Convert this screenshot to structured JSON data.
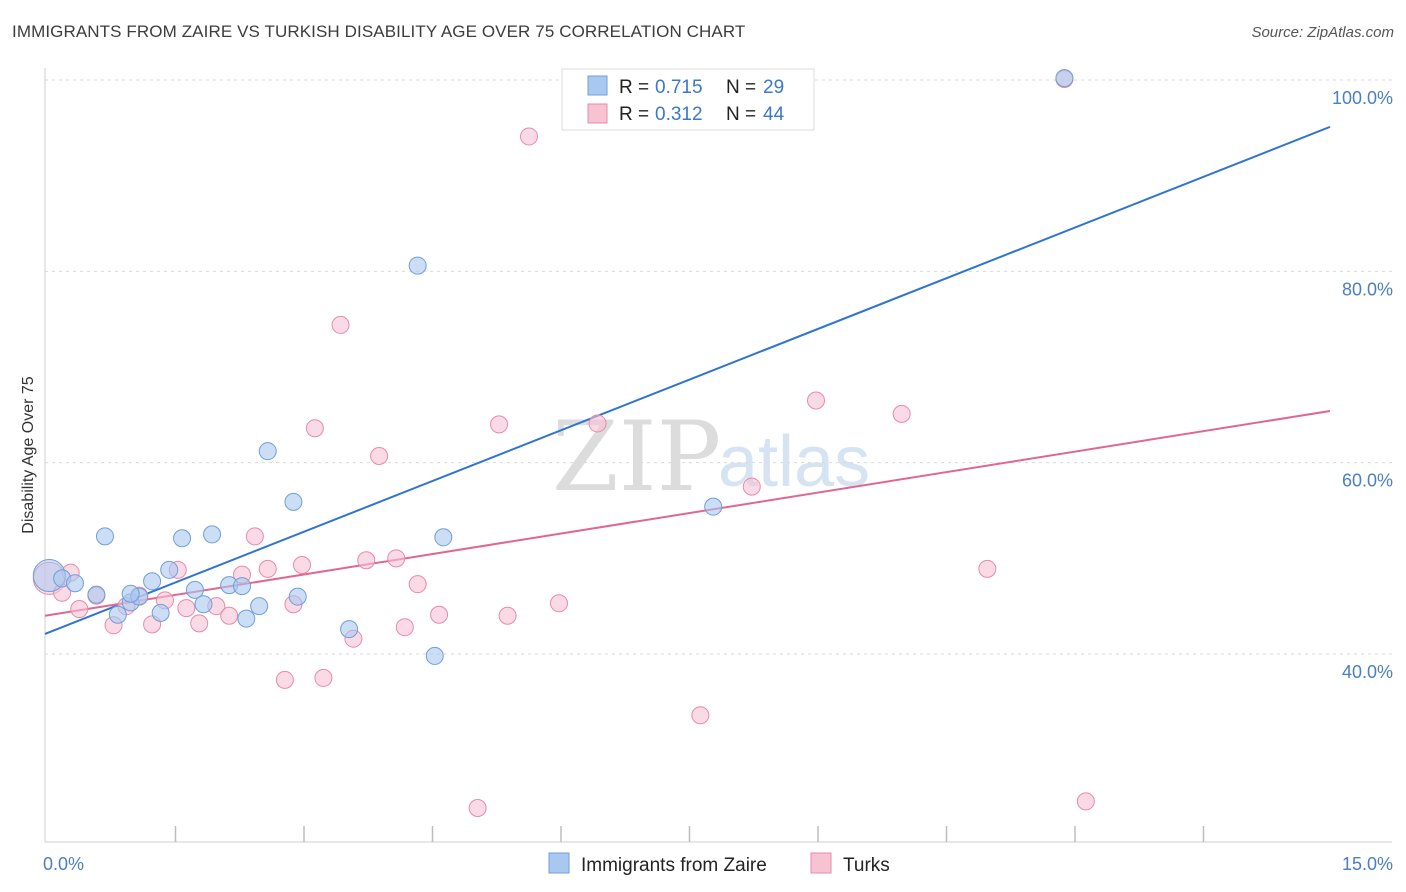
{
  "title": "IMMIGRANTS FROM ZAIRE VS TURKISH DISABILITY AGE OVER 75 CORRELATION CHART",
  "source": "Source: ZipAtlas.com",
  "watermark": {
    "zip": "ZIP",
    "atlas": "atlas"
  },
  "colors": {
    "blue_fill": "#a9c8f0",
    "blue_stroke": "#6f9fd8",
    "blue_line": "#2f74d0",
    "pink_fill": "#f7c3d3",
    "pink_stroke": "#e98aa9",
    "pink_line": "#e0678f",
    "grid": "#d9d9d9",
    "axis_label": "#4a7fc1"
  },
  "legend": {
    "rows": [
      {
        "r_label": "R =",
        "r_value": "0.715",
        "n_label": "N =",
        "n_value": "29"
      },
      {
        "r_label": "R =",
        "r_value": "0.312",
        "n_label": "N =",
        "n_value": "44"
      }
    ]
  },
  "bottom_legend": [
    "Immigrants from Zaire",
    "Turks"
  ],
  "chart_data": {
    "type": "scatter",
    "title": "IMMIGRANTS FROM ZAIRE VS TURKISH DISABILITY AGE OVER 75 CORRELATION CHART",
    "xlabel": "",
    "ylabel": "Disability Age Over 75",
    "xlim": [
      0,
      15
    ],
    "ylim": [
      22,
      102
    ],
    "x_tick_labels": [
      {
        "value": 0,
        "label": "0.0%"
      },
      {
        "value": 15,
        "label": "15.0%"
      }
    ],
    "y_tick_labels": [
      {
        "value": 100,
        "label": "100.0%"
      },
      {
        "value": 80,
        "label": "80.0%"
      },
      {
        "value": 60,
        "label": "60.0%"
      },
      {
        "value": 40,
        "label": "40.0%"
      }
    ],
    "y_gridlines": [
      100,
      80,
      60,
      40
    ],
    "x_minor_ticks": [
      1.5,
      3.0,
      4.5,
      6.0,
      7.5,
      9.0,
      10.5,
      12.0,
      13.5
    ],
    "series": [
      {
        "name": "Immigrants from Zaire",
        "color": "blue",
        "trend": {
          "x": [
            0,
            15
          ],
          "y": [
            42.1,
            95.1
          ]
        },
        "points": [
          {
            "x": 0.05,
            "y": 48.2,
            "big": true
          },
          {
            "x": 0.2,
            "y": 47.9
          },
          {
            "x": 0.35,
            "y": 47.4
          },
          {
            "x": 0.6,
            "y": 46.2
          },
          {
            "x": 0.7,
            "y": 52.3
          },
          {
            "x": 0.85,
            "y": 44.1
          },
          {
            "x": 1.0,
            "y": 45.4
          },
          {
            "x": 1.1,
            "y": 46.0
          },
          {
            "x": 1.25,
            "y": 47.6
          },
          {
            "x": 1.35,
            "y": 44.3
          },
          {
            "x": 1.45,
            "y": 48.8
          },
          {
            "x": 1.6,
            "y": 52.1
          },
          {
            "x": 1.75,
            "y": 46.7
          },
          {
            "x": 1.85,
            "y": 45.2
          },
          {
            "x": 1.95,
            "y": 52.5
          },
          {
            "x": 2.15,
            "y": 47.2
          },
          {
            "x": 2.3,
            "y": 47.1
          },
          {
            "x": 2.35,
            "y": 43.7
          },
          {
            "x": 2.5,
            "y": 45.0
          },
          {
            "x": 2.6,
            "y": 61.2
          },
          {
            "x": 2.9,
            "y": 55.9
          },
          {
            "x": 2.95,
            "y": 46.0
          },
          {
            "x": 3.55,
            "y": 42.6
          },
          {
            "x": 4.35,
            "y": 80.6
          },
          {
            "x": 4.55,
            "y": 39.8
          },
          {
            "x": 4.65,
            "y": 52.2
          },
          {
            "x": 7.8,
            "y": 55.4
          },
          {
            "x": 11.9,
            "y": 100.2
          },
          {
            "x": 1.0,
            "y": 46.3
          }
        ]
      },
      {
        "name": "Turks",
        "color": "pink",
        "trend": {
          "x": [
            0,
            15
          ],
          "y": [
            44.0,
            65.4
          ]
        },
        "points": [
          {
            "x": 0.05,
            "y": 47.9,
            "big": true
          },
          {
            "x": 0.2,
            "y": 46.4
          },
          {
            "x": 0.4,
            "y": 44.7
          },
          {
            "x": 0.6,
            "y": 46.1
          },
          {
            "x": 0.8,
            "y": 43.0
          },
          {
            "x": 0.95,
            "y": 45.0
          },
          {
            "x": 1.1,
            "y": 46.1
          },
          {
            "x": 1.25,
            "y": 43.1
          },
          {
            "x": 1.4,
            "y": 45.6
          },
          {
            "x": 1.55,
            "y": 48.8
          },
          {
            "x": 1.65,
            "y": 44.8
          },
          {
            "x": 1.8,
            "y": 43.2
          },
          {
            "x": 2.0,
            "y": 45.0
          },
          {
            "x": 2.15,
            "y": 44.0
          },
          {
            "x": 2.3,
            "y": 48.3
          },
          {
            "x": 2.45,
            "y": 52.3
          },
          {
            "x": 2.6,
            "y": 48.9
          },
          {
            "x": 2.8,
            "y": 37.3
          },
          {
            "x": 2.9,
            "y": 45.2
          },
          {
            "x": 3.0,
            "y": 49.3
          },
          {
            "x": 3.15,
            "y": 63.6
          },
          {
            "x": 3.25,
            "y": 37.5
          },
          {
            "x": 3.45,
            "y": 74.4
          },
          {
            "x": 3.6,
            "y": 41.6
          },
          {
            "x": 3.75,
            "y": 49.8
          },
          {
            "x": 3.9,
            "y": 60.7
          },
          {
            "x": 4.1,
            "y": 50.0
          },
          {
            "x": 4.2,
            "y": 42.8
          },
          {
            "x": 4.35,
            "y": 47.3
          },
          {
            "x": 4.6,
            "y": 44.1
          },
          {
            "x": 5.05,
            "y": 23.9
          },
          {
            "x": 5.3,
            "y": 64.0
          },
          {
            "x": 5.4,
            "y": 44.0
          },
          {
            "x": 5.65,
            "y": 94.1
          },
          {
            "x": 6.0,
            "y": 45.3
          },
          {
            "x": 6.45,
            "y": 64.1
          },
          {
            "x": 7.65,
            "y": 33.6
          },
          {
            "x": 8.25,
            "y": 57.5
          },
          {
            "x": 9.0,
            "y": 66.5
          },
          {
            "x": 10.0,
            "y": 65.1
          },
          {
            "x": 11.0,
            "y": 48.9
          },
          {
            "x": 11.9,
            "y": 100.1
          },
          {
            "x": 12.15,
            "y": 24.6
          },
          {
            "x": 0.3,
            "y": 48.5
          }
        ]
      }
    ]
  }
}
